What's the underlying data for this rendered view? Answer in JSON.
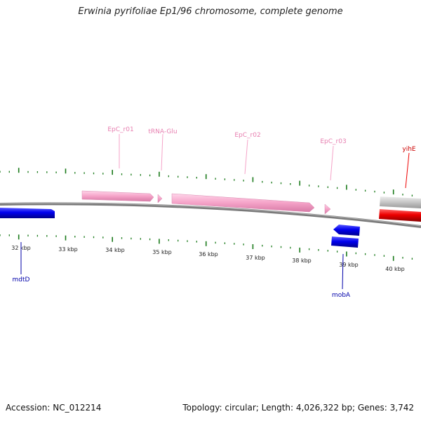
{
  "title": "Erwinia pyrifoliae Ep1/96 chromosome, complete genome",
  "footer": {
    "accession": "Accession: NC_012214",
    "summary": "Topology: circular; Length: 4,026,322 bp; Genes: 3,742"
  },
  "colors": {
    "backbone": "#808080",
    "tick": "#1a7a1a",
    "rna": "#f5a3c8",
    "rna_label": "#e77fb0",
    "gene_blue": "#0000ee",
    "gene_red": "#ee0000",
    "gene_gray": "#c0c0c0"
  },
  "ruler": {
    "labels": [
      "32 kbp",
      "33 kbp",
      "34 kbp",
      "35 kbp",
      "36 kbp",
      "37 kbp",
      "38 kbp",
      "39 kbp",
      "40 kbp"
    ]
  },
  "features": [
    {
      "name": "EpC_r01",
      "kind": "rna",
      "strand": "+"
    },
    {
      "name": "tRNA-Glu",
      "kind": "rna",
      "strand": "+"
    },
    {
      "name": "EpC_r02",
      "kind": "rna",
      "strand": "+"
    },
    {
      "name": "EpC_r03",
      "kind": "rna",
      "strand": "+"
    },
    {
      "name": "yihE",
      "kind": "gene",
      "strand": "+"
    },
    {
      "name": "mdtD",
      "kind": "gene",
      "strand": "+"
    },
    {
      "name": "mobA",
      "kind": "gene",
      "strand": "-"
    }
  ]
}
